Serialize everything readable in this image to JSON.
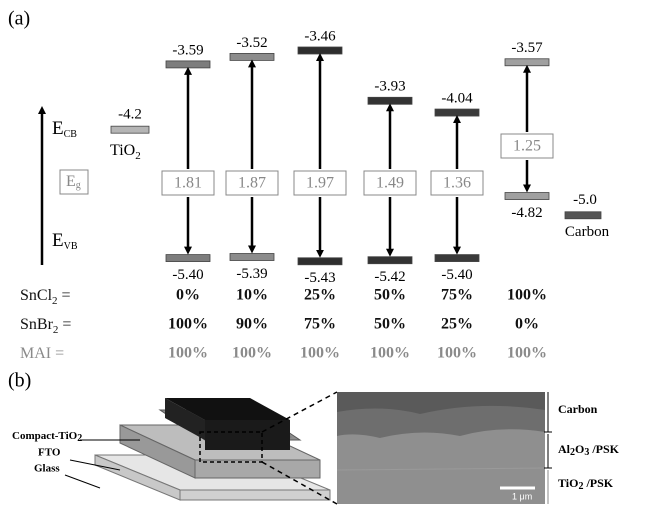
{
  "panel_a": {
    "label": "(a)",
    "ecb": [
      "E",
      "CB"
    ],
    "evb": [
      "E",
      "VB"
    ],
    "eg": [
      "E",
      "g"
    ],
    "tio2": {
      "cb": "-4.2",
      "name": [
        "TiO",
        "2"
      ],
      "color": "#b5b5b5"
    },
    "carbon": {
      "level": "-5.0",
      "name": "Carbon",
      "color": "#555555"
    },
    "columns": [
      {
        "cb": "-3.59",
        "vb": "-5.40",
        "gap": "1.81",
        "color": "#7d7d7d"
      },
      {
        "cb": "-3.52",
        "vb": "-5.39",
        "gap": "1.87",
        "color": "#8c8c8c"
      },
      {
        "cb": "-3.46",
        "vb": "-5.43",
        "gap": "1.97",
        "color": "#2e2e2e"
      },
      {
        "cb": "-3.93",
        "vb": "-5.42",
        "gap": "1.49",
        "color": "#333333"
      },
      {
        "cb": "-4.04",
        "vb": "-5.40",
        "gap": "1.36",
        "color": "#3a3a3a"
      },
      {
        "cb": "-3.57",
        "vb": "-4.82",
        "gap": "1.25",
        "color": "#a0a0a0"
      }
    ],
    "rows": [
      {
        "label": [
          "SnCl",
          "2",
          " ="
        ],
        "values": [
          "0%",
          "10%",
          "25%",
          "50%",
          "75%",
          "100%"
        ],
        "color": "#111111"
      },
      {
        "label": [
          "SnBr",
          "2",
          " ="
        ],
        "values": [
          "100%",
          "90%",
          "75%",
          "50%",
          "25%",
          "0%"
        ],
        "color": "#111111"
      },
      {
        "label": [
          "MAI ="
        ],
        "values": [
          "100%",
          "100%",
          "100%",
          "100%",
          "100%",
          "100%"
        ],
        "color": "#8a8a8a"
      }
    ]
  },
  "panel_b": {
    "label": "(b)",
    "device_labels": [
      [
        "Compact-TiO",
        "2"
      ],
      [
        "FTO"
      ],
      [
        "Glass"
      ]
    ],
    "sem_labels": [
      [
        "Carbon"
      ],
      [
        "Al",
        "2",
        "O",
        "3",
        " /PSK"
      ],
      [
        "TiO",
        "2",
        " /PSK"
      ]
    ],
    "scale_bar": "1 μm"
  }
}
